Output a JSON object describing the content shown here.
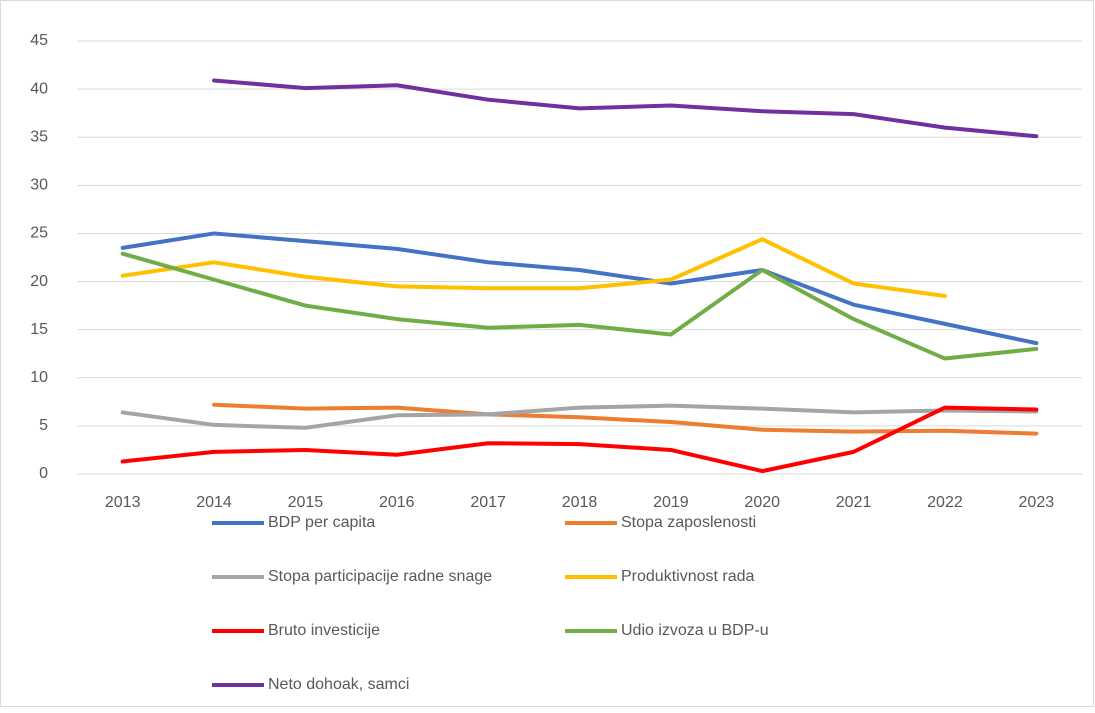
{
  "chart_data": {
    "type": "line",
    "categories": [
      "2013",
      "2014",
      "2015",
      "2016",
      "2017",
      "2018",
      "2019",
      "2020",
      "2021",
      "2022",
      "2023"
    ],
    "ylim": [
      0,
      45
    ],
    "yticks": [
      0,
      5,
      10,
      15,
      20,
      25,
      30,
      35,
      40,
      45
    ],
    "grid": true,
    "legend": "bottom",
    "series": [
      {
        "name": "BDP per capita",
        "color": "#4472c4",
        "values": [
          23.5,
          25.0,
          24.2,
          23.4,
          22.0,
          21.2,
          19.8,
          21.2,
          17.6,
          15.6,
          13.6
        ]
      },
      {
        "name": "Stopa zaposlenosti",
        "color": "#ed7d31",
        "values": [
          null,
          7.2,
          6.8,
          6.9,
          6.2,
          5.9,
          5.4,
          4.6,
          4.4,
          4.5,
          4.2
        ]
      },
      {
        "name": "Stopa participacije radne snage",
        "color": "#a5a5a5",
        "values": [
          6.4,
          5.1,
          4.8,
          6.1,
          6.2,
          6.9,
          7.1,
          6.8,
          6.4,
          6.6,
          6.5
        ]
      },
      {
        "name": "Produktivnost rada",
        "color": "#ffc000",
        "values": [
          20.6,
          22.0,
          20.5,
          19.5,
          19.3,
          19.3,
          20.2,
          24.4,
          19.8,
          18.5,
          null
        ]
      },
      {
        "name": "Bruto investicije",
        "color": "#ff0000",
        "values": [
          1.3,
          2.3,
          2.5,
          2.0,
          3.2,
          3.1,
          2.5,
          0.3,
          2.3,
          6.9,
          6.7
        ]
      },
      {
        "name": "Udio izvoza u BDP-u",
        "color": "#70ad47",
        "values": [
          22.9,
          20.2,
          17.5,
          16.1,
          15.2,
          15.5,
          14.5,
          21.2,
          16.1,
          12.0,
          13.0
        ]
      },
      {
        "name": "Neto dohoak, samci",
        "color": "#7030a0",
        "values": [
          null,
          40.9,
          40.1,
          40.4,
          38.9,
          38.0,
          38.3,
          37.7,
          37.4,
          36.0,
          35.1
        ]
      }
    ]
  }
}
